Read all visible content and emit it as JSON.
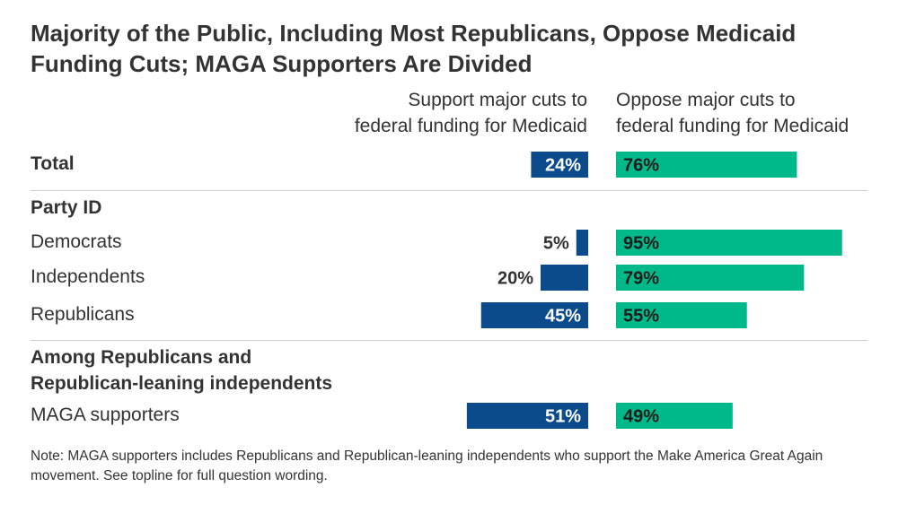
{
  "chart_data": {
    "type": "bar",
    "title": "Majority of the Public, Including Most Republicans, Oppose Medicaid Funding Cuts; MAGA Supporters Are Divided",
    "series": [
      {
        "name": "Support major cuts to federal funding for Medicaid",
        "color": "#0b4b8c",
        "values": [
          24,
          5,
          20,
          45,
          51
        ]
      },
      {
        "name": "Oppose major cuts to federal funding for Medicaid",
        "color": "#00b98a",
        "values": [
          76,
          95,
          79,
          55,
          49
        ]
      }
    ],
    "categories": [
      "Total",
      "Democrats",
      "Independents",
      "Republicans",
      "MAGA supporters"
    ],
    "groups": [
      "Party ID",
      "Among Republicans and Republican-leaning independents"
    ],
    "value_labels": {
      "support": [
        "24%",
        "5%",
        "20%",
        "45%",
        "51%"
      ],
      "oppose": [
        "76%",
        "95%",
        "79%",
        "55%",
        "49%"
      ]
    },
    "note": "Note: MAGA supporters includes Republicans and Republican-leaning independents who support the Make America Great Again movement. See topline for full question wording."
  },
  "header": {
    "support_line1": "Support major cuts to",
    "support_line2": "federal funding for Medicaid",
    "oppose_line1": "Oppose major cuts to",
    "oppose_line2": "federal funding for Medicaid"
  },
  "groups": {
    "party": "Party ID",
    "rep_line1": "Among Republicans and",
    "rep_line2": "Republican-leaning independents"
  }
}
